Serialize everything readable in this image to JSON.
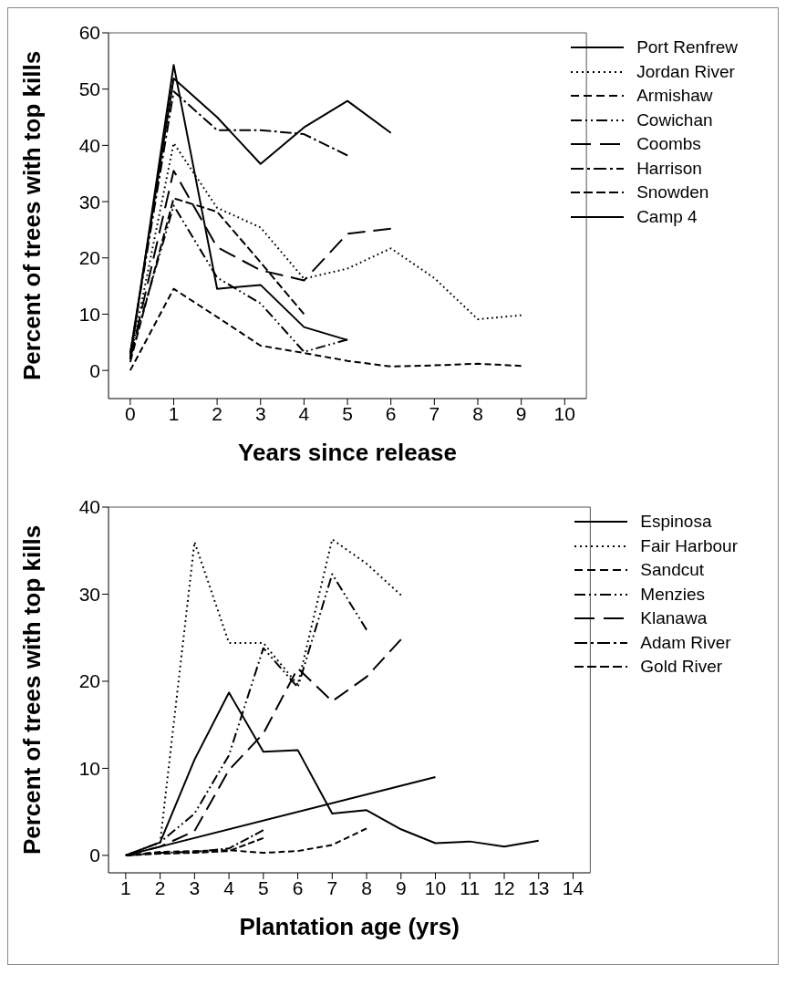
{
  "chart_data": [
    {
      "type": "line",
      "xlabel": "Years since release",
      "ylabel": "Percent of trees with top kills",
      "xlim": [
        -0.5,
        10.5
      ],
      "xticks": [
        0,
        1,
        2,
        3,
        4,
        5,
        6,
        7,
        8,
        9,
        10
      ],
      "ylim": [
        -5,
        60
      ],
      "yticks": [
        0,
        10,
        20,
        30,
        40,
        50,
        60
      ],
      "legend": "top right",
      "series": [
        {
          "name": "Port Renfrew",
          "color": "#000000",
          "line_style": "solid",
          "x": [
            0,
            1,
            2,
            3,
            4,
            5,
            6
          ],
          "values": [
            3,
            51.9,
            45,
            36.7,
            43.2,
            47.9,
            42.2
          ]
        },
        {
          "name": "Jordan River",
          "color": "#000000",
          "line_style": "dotted",
          "x": [
            0,
            1,
            2,
            3,
            4,
            5,
            6,
            7,
            8,
            9
          ],
          "values": [
            2,
            40.4,
            28.9,
            25.4,
            16.3,
            18.1,
            21.7,
            16.4,
            9.1,
            9.8
          ]
        },
        {
          "name": "Armishaw",
          "color": "#000000",
          "line_style": "dashed",
          "x": [
            0,
            1,
            2,
            3,
            4,
            5,
            6,
            7,
            8,
            9
          ],
          "values": [
            0,
            14.5,
            9.5,
            4.4,
            3.1,
            1.7,
            0.7,
            0.9,
            1.2,
            0.8
          ]
        },
        {
          "name": "Cowichan",
          "color": "#000000",
          "line_style": "dashdotdot",
          "x": [
            0,
            1,
            2,
            3,
            4,
            5
          ],
          "values": [
            2.5,
            29.3,
            16.5,
            11.9,
            3.3,
            5.5
          ]
        },
        {
          "name": "Coombs",
          "color": "#000000",
          "line_style": "longdash",
          "x": [
            0,
            1,
            2,
            3,
            4,
            5,
            6
          ],
          "values": [
            2,
            35.5,
            21.9,
            17.8,
            16,
            24.3,
            25.2
          ]
        },
        {
          "name": "Harrison",
          "color": "#000000",
          "line_style": "dashdot",
          "x": [
            0,
            1,
            2,
            3,
            4,
            5
          ],
          "values": [
            3,
            49.6,
            42.7,
            42.7,
            42,
            38.2
          ]
        },
        {
          "name": "Snowden",
          "color": "#000000",
          "line_style": "mediumdash",
          "x": [
            0,
            1,
            2,
            3,
            4
          ],
          "values": [
            1.5,
            30.6,
            28.2,
            19.2,
            10
          ]
        },
        {
          "name": "Camp 4",
          "color": "#000000",
          "line_style": "solid",
          "x": [
            0,
            1,
            2,
            3,
            4,
            5
          ],
          "values": [
            2,
            54.3,
            14.5,
            15.2,
            7.7,
            5.4
          ]
        }
      ]
    },
    {
      "type": "line",
      "xlabel": "Plantation age (yrs)",
      "ylabel": "Percent of trees with top kills",
      "xlim": [
        0.5,
        14.5
      ],
      "xticks": [
        1,
        2,
        3,
        4,
        5,
        6,
        7,
        8,
        9,
        10,
        11,
        12,
        13,
        14
      ],
      "ylim": [
        -2,
        40
      ],
      "yticks": [
        0,
        10,
        20,
        30,
        40
      ],
      "legend": "top right",
      "series": [
        {
          "name": "Espinosa",
          "color": "#000000",
          "line_style": "solid",
          "x": [
            1,
            2,
            3,
            4,
            5,
            6,
            7,
            8,
            9,
            10,
            11,
            12,
            13
          ],
          "values": [
            0,
            1.5,
            11,
            18.7,
            11.9,
            12.1,
            4.8,
            5.2,
            3,
            1.4,
            1.6,
            1,
            1.7
          ]
        },
        {
          "name": "Fair Harbour",
          "color": "#000000",
          "line_style": "dotted",
          "x": [
            1,
            2,
            3,
            4,
            5,
            6,
            7,
            8,
            9
          ],
          "values": [
            0,
            1.5,
            36,
            24.4,
            24.4,
            19.6,
            36.3,
            33.5,
            29.9
          ]
        },
        {
          "name": "Sandcut",
          "color": "#000000",
          "line_style": "dashed",
          "x": [
            1,
            2,
            3,
            4,
            5,
            6,
            7,
            8
          ],
          "values": [
            0,
            0.4,
            0.5,
            0.6,
            0.3,
            0.5,
            1.2,
            3.1
          ]
        },
        {
          "name": "Menzies",
          "color": "#000000",
          "line_style": "dashdotdot",
          "x": [
            1,
            2,
            3,
            4,
            5,
            6,
            7,
            8
          ],
          "values": [
            0,
            1.5,
            4.8,
            11.5,
            23.8,
            19.3,
            32.3,
            25.9
          ]
        },
        {
          "name": "Klanawa",
          "color": "#000000",
          "line_style": "longdash",
          "x": [
            1,
            2,
            3,
            4,
            5,
            6,
            7,
            8,
            9
          ],
          "values": [
            0,
            1,
            2.8,
            9.8,
            14,
            21.5,
            17.7,
            20.5,
            24.8
          ]
        },
        {
          "name": "Adam River",
          "color": "#000000",
          "line_style": "dashdot",
          "x": [
            1,
            2,
            3,
            4,
            5
          ],
          "values": [
            0,
            0.3,
            0.4,
            0.8,
            2.9
          ]
        },
        {
          "name": "Gold River",
          "color": "#000000",
          "line_style": "mediumdash",
          "x": [
            1,
            2,
            3,
            4,
            5
          ],
          "values": [
            0,
            0.2,
            0.3,
            0.5,
            2
          ]
        },
        {
          "color": "#000000",
          "line_style": "solid",
          "x": [
            1,
            10
          ],
          "values": [
            0,
            9
          ]
        }
      ]
    }
  ]
}
